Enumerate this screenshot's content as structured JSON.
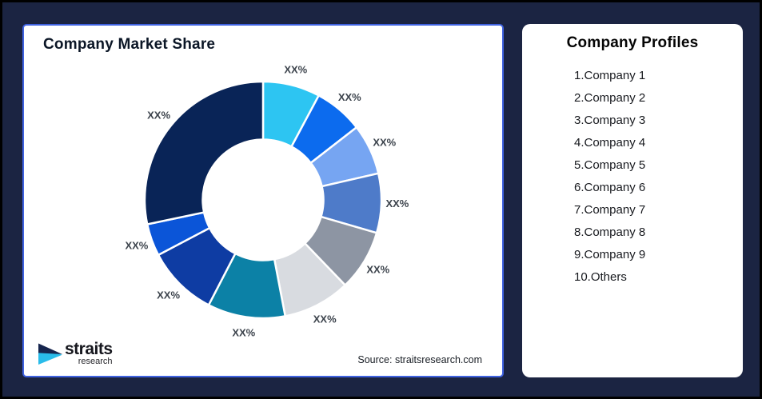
{
  "background_color": "#1B2442",
  "chart_panel": {
    "title": "Company Market Share",
    "source": "Source: straitsresearch.com",
    "border_color": "#3F62E0"
  },
  "logo": {
    "name": "straits",
    "subname": "research",
    "icon_dark_color": "#16254E",
    "icon_cyan_color": "#29BCEA"
  },
  "profiles_panel": {
    "title": "Company Profiles",
    "items": [
      "1.Company 1",
      "2.Company 2",
      "3.Company 3",
      "4.Company 4",
      "5.Company 5",
      "6.Company 6",
      "7.Company 7",
      "8.Company 8",
      "9.Company 9",
      "10.Others"
    ]
  },
  "chart_data": {
    "type": "pie",
    "subtype": "donut",
    "title": "Company Market Share",
    "categories": [
      "Company 1",
      "Company 2",
      "Company 3",
      "Company 4",
      "Company 5",
      "Company 6",
      "Company 7",
      "Company 8",
      "Company 9",
      "Others"
    ],
    "values": [
      7.8,
      6.7,
      6.9,
      8.1,
      8.3,
      9.2,
      10.6,
      9.7,
      4.4,
      28.3
    ],
    "labels": [
      "XX%",
      "XX%",
      "XX%",
      "XX%",
      "XX%",
      "XX%",
      "XX%",
      "XX%",
      "XX%",
      "XX%"
    ],
    "colors": [
      "#2DC5F2",
      "#0C6BEE",
      "#76A5F2",
      "#4E7BC9",
      "#8D95A3",
      "#D8DBE0",
      "#0C81A6",
      "#0E3CA3",
      "#0B55D8",
      "#092457"
    ],
    "start_angle_deg": 0,
    "clockwise": true,
    "inner_radius_ratio": 0.51,
    "segment_gap_color": "#ffffff",
    "label_color": "#3C434C",
    "legend": "none",
    "source": "Source: straitsresearch.com"
  }
}
